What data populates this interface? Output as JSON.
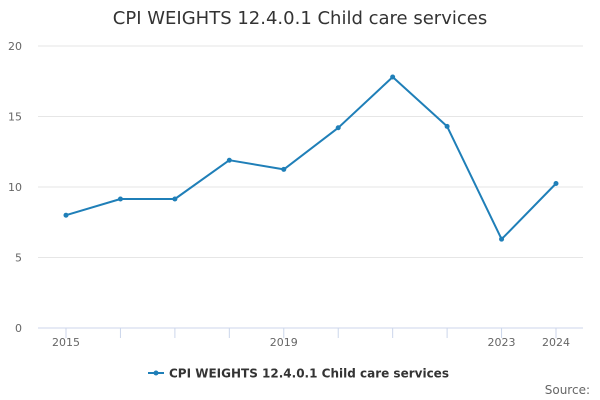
{
  "chart_data": {
    "type": "line",
    "title": "CPI WEIGHTS 12.4.0.1 Child care services",
    "xlabel": "",
    "ylabel": "",
    "x": [
      2015,
      2016,
      2017,
      2018,
      2019,
      2020,
      2021,
      2022,
      2023,
      2024
    ],
    "x_tick_labels": [
      {
        "x": 2015,
        "label": "2015"
      },
      {
        "x": 2019,
        "label": "2019"
      },
      {
        "x": 2023,
        "label": "2023"
      },
      {
        "x": 2024,
        "label": "2024"
      }
    ],
    "y_ticks": [
      {
        "value": 0,
        "label": "0"
      },
      {
        "value": 5,
        "label": "5"
      },
      {
        "value": 10,
        "label": "10"
      },
      {
        "value": 15,
        "label": "15"
      },
      {
        "value": 20,
        "label": "20"
      }
    ],
    "ylim": [
      0,
      20
    ],
    "grid": true,
    "legend_position": "bottom-center",
    "series": [
      {
        "name": "CPI WEIGHTS 12.4.0.1 Child care services",
        "color": "#1f7fb8",
        "values": [
          8.0,
          9.15,
          9.15,
          11.9,
          11.25,
          14.2,
          17.8,
          14.3,
          6.3,
          10.25
        ]
      }
    ],
    "credits": "Source:"
  }
}
